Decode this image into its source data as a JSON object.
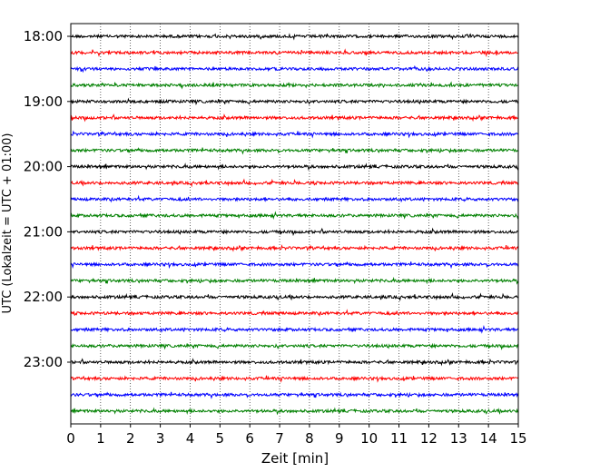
{
  "chart_data": {
    "type": "line",
    "title": "",
    "xlabel": "Zeit  [min]",
    "ylabel": "UTC (Lokalzeit = UTC + 01:00)",
    "xlim": [
      0,
      15
    ],
    "xticks": [
      "0",
      "1",
      "2",
      "3",
      "4",
      "5",
      "6",
      "7",
      "8",
      "9",
      "10",
      "11",
      "12",
      "13",
      "14",
      "15"
    ],
    "ytick_labels": [
      "18:00",
      "19:00",
      "20:00",
      "21:00",
      "22:00",
      "23:00"
    ],
    "grid": "vertical-dotted",
    "trace_interval_minutes": 15,
    "trace_start": "18:00",
    "trace_count": 24,
    "colors": [
      "#000000",
      "#ff0000",
      "#0000ff",
      "#008000"
    ]
  }
}
